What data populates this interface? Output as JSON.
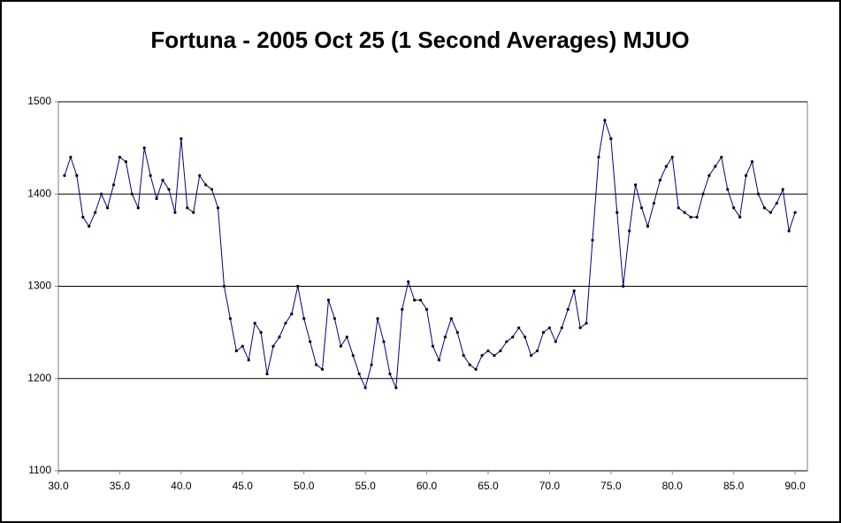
{
  "chart_data": {
    "type": "line",
    "title": "Fortuna - 2005 Oct 25 (1 Second Averages) MJUO",
    "color": "#000080",
    "marker_color": "#000000",
    "grid": true,
    "xlim": [
      30,
      91
    ],
    "ylim": [
      1100,
      1500
    ],
    "xticks": [
      {
        "value": 30,
        "label": "30.0"
      },
      {
        "value": 35,
        "label": "35.0"
      },
      {
        "value": 40,
        "label": "40.0"
      },
      {
        "value": 45,
        "label": "45.0"
      },
      {
        "value": 50,
        "label": "50.0"
      },
      {
        "value": 55,
        "label": "55.0"
      },
      {
        "value": 60,
        "label": "60.0"
      },
      {
        "value": 65,
        "label": "65.0"
      },
      {
        "value": 70,
        "label": "70.0"
      },
      {
        "value": 75,
        "label": "75.0"
      },
      {
        "value": 80,
        "label": "80.0"
      },
      {
        "value": 85,
        "label": "85.0"
      },
      {
        "value": 90,
        "label": "90.0"
      }
    ],
    "yticks": [
      1100,
      1200,
      1300,
      1400,
      1500
    ],
    "x": [
      30.5,
      31,
      31.5,
      32,
      32.5,
      33,
      33.5,
      34,
      34.5,
      35,
      35.5,
      36,
      36.5,
      37,
      37.5,
      38,
      38.5,
      39,
      39.5,
      40,
      40.5,
      41,
      41.5,
      42,
      42.5,
      43,
      43.5,
      44,
      44.5,
      45,
      45.5,
      46,
      46.5,
      47,
      47.5,
      48,
      48.5,
      49,
      49.5,
      50,
      50.5,
      51,
      51.5,
      52,
      52.5,
      53,
      53.5,
      54,
      54.5,
      55,
      55.5,
      56,
      56.5,
      57,
      57.5,
      58,
      58.5,
      59,
      59.5,
      60,
      60.5,
      61,
      61.5,
      62,
      62.5,
      63,
      63.5,
      64,
      64.5,
      65,
      65.5,
      66,
      66.5,
      67,
      67.5,
      68,
      68.5,
      69,
      69.5,
      70,
      70.5,
      71,
      71.5,
      72,
      72.5,
      73,
      73.5,
      74,
      74.5,
      75,
      75.5,
      76,
      76.5,
      77,
      77.5,
      78,
      78.5,
      79,
      79.5,
      80,
      80.5,
      81,
      81.5,
      82,
      82.5,
      83,
      83.5,
      84,
      84.5,
      85,
      85.5,
      86,
      86.5,
      87,
      87.5,
      88,
      88.5,
      89,
      89.5,
      90
    ],
    "values": [
      1420,
      1440,
      1420,
      1375,
      1365,
      1380,
      1400,
      1385,
      1410,
      1440,
      1435,
      1400,
      1385,
      1450,
      1420,
      1395,
      1415,
      1405,
      1380,
      1460,
      1385,
      1380,
      1420,
      1410,
      1405,
      1385,
      1300,
      1265,
      1230,
      1235,
      1220,
      1260,
      1250,
      1205,
      1235,
      1245,
      1260,
      1270,
      1300,
      1265,
      1240,
      1215,
      1210,
      1285,
      1265,
      1235,
      1245,
      1225,
      1205,
      1190,
      1215,
      1265,
      1240,
      1205,
      1190,
      1275,
      1305,
      1285,
      1285,
      1275,
      1235,
      1220,
      1245,
      1265,
      1250,
      1225,
      1215,
      1210,
      1225,
      1230,
      1225,
      1230,
      1240,
      1245,
      1255,
      1245,
      1225,
      1230,
      1250,
      1255,
      1240,
      1255,
      1275,
      1295,
      1255,
      1260,
      1350,
      1440,
      1480,
      1460,
      1380,
      1300,
      1360,
      1410,
      1385,
      1365,
      1390,
      1415,
      1430,
      1440,
      1385,
      1380,
      1375,
      1375,
      1400,
      1420,
      1430,
      1440,
      1405,
      1385,
      1375,
      1420,
      1435,
      1400,
      1385,
      1380,
      1390,
      1405,
      1360,
      1380
    ]
  }
}
